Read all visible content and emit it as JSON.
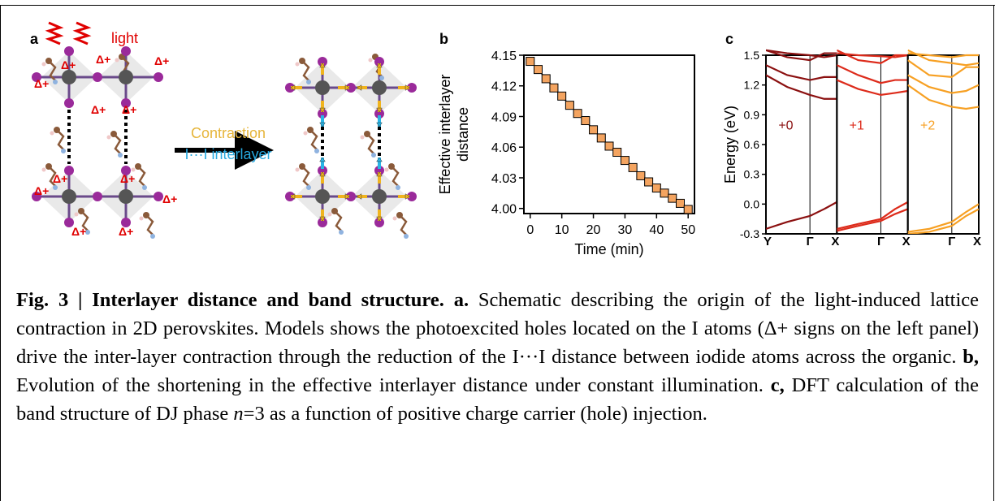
{
  "panel_a": {
    "label": "a",
    "light_label": "light",
    "arrow_label_1": "Contraction",
    "arrow_label_2": "I···I interlayer",
    "delta_label": "Δ+"
  },
  "panel_b": {
    "label": "b"
  },
  "panel_c": {
    "label": "c"
  },
  "chart_data": [
    {
      "type": "scatter",
      "title": "",
      "xlabel": "Time (min)",
      "ylabel": "Effective interlayer distance",
      "xlim": [
        -2,
        52
      ],
      "ylim": [
        3.995,
        4.15
      ],
      "xticks": [
        "0",
        "10",
        "20",
        "30",
        "40",
        "50"
      ],
      "yticks": [
        "4.00",
        "4.03",
        "4.06",
        "4.09",
        "4.12",
        "4.15"
      ],
      "grid": false,
      "marker_color": "#f4a460",
      "series": [
        {
          "x": [
            0,
            2.5,
            5,
            7.5,
            10,
            12.5,
            15,
            17.5,
            20,
            22.5,
            25,
            27.5,
            30,
            32.5,
            35,
            37.5,
            40,
            42.5,
            45,
            47.5,
            50
          ],
          "y": [
            4.144,
            4.136,
            4.127,
            4.118,
            4.11,
            4.101,
            4.093,
            4.086,
            4.077,
            4.069,
            4.061,
            4.055,
            4.047,
            4.04,
            4.032,
            4.026,
            4.02,
            4.015,
            4.01,
            4.005,
            3.999
          ]
        }
      ]
    },
    {
      "type": "line",
      "title": "",
      "ylabel": "Energy (eV)",
      "ylim": [
        -0.3,
        1.5
      ],
      "yticks": [
        "-0.3",
        "0.0",
        "0.3",
        "0.6",
        "0.9",
        "1.2",
        "1.5"
      ],
      "kpoints": [
        "Y",
        "Γ",
        "X"
      ],
      "kpoints_last": [
        "X",
        "Γ",
        "X"
      ],
      "panels": [
        {
          "name": "+0",
          "color": "#8b1010"
        },
        {
          "name": "+1",
          "color": "#dd2b1b"
        },
        {
          "name": "+2",
          "color": "#f7a023"
        }
      ]
    }
  ],
  "caption": {
    "fig_title": "Fig. 3 | Interlayer distance and band structure.",
    "a_label": "a.",
    "a_text": " Schematic describing the origin of the light-induced lattice contraction in 2D perovskites. Models shows the photoexcited holes located on the I atoms (Δ+ signs on the left panel) drive the inter-layer contraction through the reduction of the I···I distance between iodide atoms across the organic. ",
    "b_label": "b,",
    "b_text": " Evolution of the shortening in the effective interlayer distance under constant illumination. ",
    "c_label": "c,",
    "c_text_1": " DFT calculation of the band structure of DJ phase ",
    "c_n": "n",
    "c_text_2": "=3 as a function of positive charge carrier (hole) injection."
  }
}
